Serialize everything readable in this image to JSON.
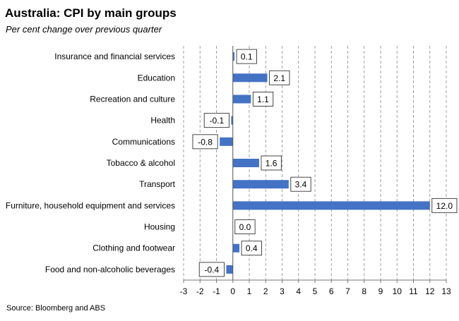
{
  "title": "Australia: CPI by main groups",
  "subtitle": "Per cent change over previous quarter",
  "source": "Source: Bloomberg and ABS",
  "chart_data": {
    "type": "bar",
    "orientation": "horizontal",
    "categories": [
      "Insurance and financial services",
      "Education",
      "Recreation and culture",
      "Health",
      "Communications",
      "Tobacco & alcohol",
      "Transport",
      "Furniture, household equipment and services",
      "Housing",
      "Clothing and footwear",
      "Food and non-alcoholic beverages"
    ],
    "values": [
      0.1,
      2.1,
      1.1,
      -0.1,
      -0.8,
      1.6,
      3.4,
      12.0,
      0.0,
      0.4,
      -0.4
    ],
    "data_labels": [
      "0.1",
      "2.1",
      "1.1",
      "-0.1",
      "-0.8",
      "1.6",
      "3.4",
      "12.0",
      "0.0",
      "0.4",
      "-0.4"
    ],
    "xlim": [
      -3,
      13
    ],
    "xticks": [
      -3,
      -2,
      -1,
      0,
      1,
      2,
      3,
      4,
      5,
      6,
      7,
      8,
      9,
      10,
      11,
      12,
      13
    ],
    "grid": "vertical dashed",
    "bar_color": "#4472C4",
    "grid_color": "#888888"
  }
}
